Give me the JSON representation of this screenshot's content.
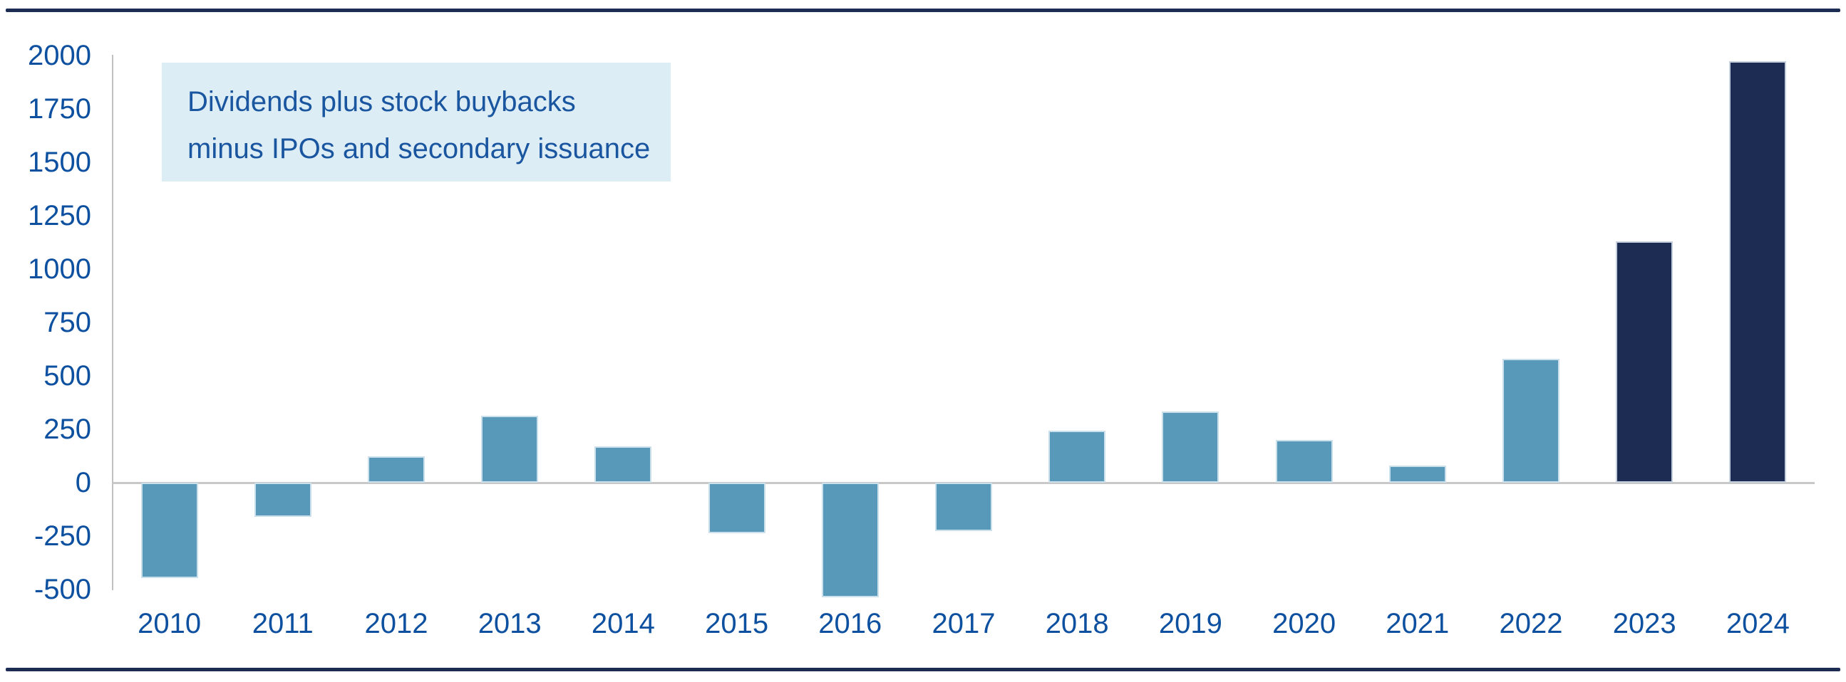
{
  "page": {
    "background": "#ffffff",
    "rule_color": "#1d2c52"
  },
  "annotation": {
    "line1": "Dividends plus stock buybacks",
    "line2": "minus IPOs and secondary issuance",
    "bg_color": "#ddedf6",
    "text_color": "#1a56a0"
  },
  "axis": {
    "label_color": "#0d50a0",
    "axis_line_color": "#c0c0c0",
    "zero_line_color": "#c8c8c8"
  },
  "chart_data": {
    "type": "bar",
    "categories": [
      "2010",
      "2011",
      "2012",
      "2013",
      "2014",
      "2015",
      "2016",
      "2017",
      "2018",
      "2019",
      "2020",
      "2021",
      "2022",
      "2023",
      "2024"
    ],
    "values": [
      -445,
      -160,
      125,
      315,
      170,
      -235,
      -535,
      -225,
      245,
      335,
      200,
      80,
      580,
      1130,
      1975
    ],
    "title": "",
    "xlabel": "",
    "ylabel": "",
    "ylim": [
      -500,
      2000
    ],
    "ytick_step": 250,
    "yticks": [
      2000,
      1750,
      1500,
      1250,
      1000,
      750,
      500,
      250,
      0,
      -250,
      -500
    ],
    "grid": false,
    "legend": "none",
    "bar_color_default": "#5898b8",
    "bar_color_highlight": "#1d2c52",
    "highlight_categories": [
      "2023",
      "2024"
    ],
    "annotation": "Dividends plus stock buybacks minus IPOs and secondary issuance"
  }
}
